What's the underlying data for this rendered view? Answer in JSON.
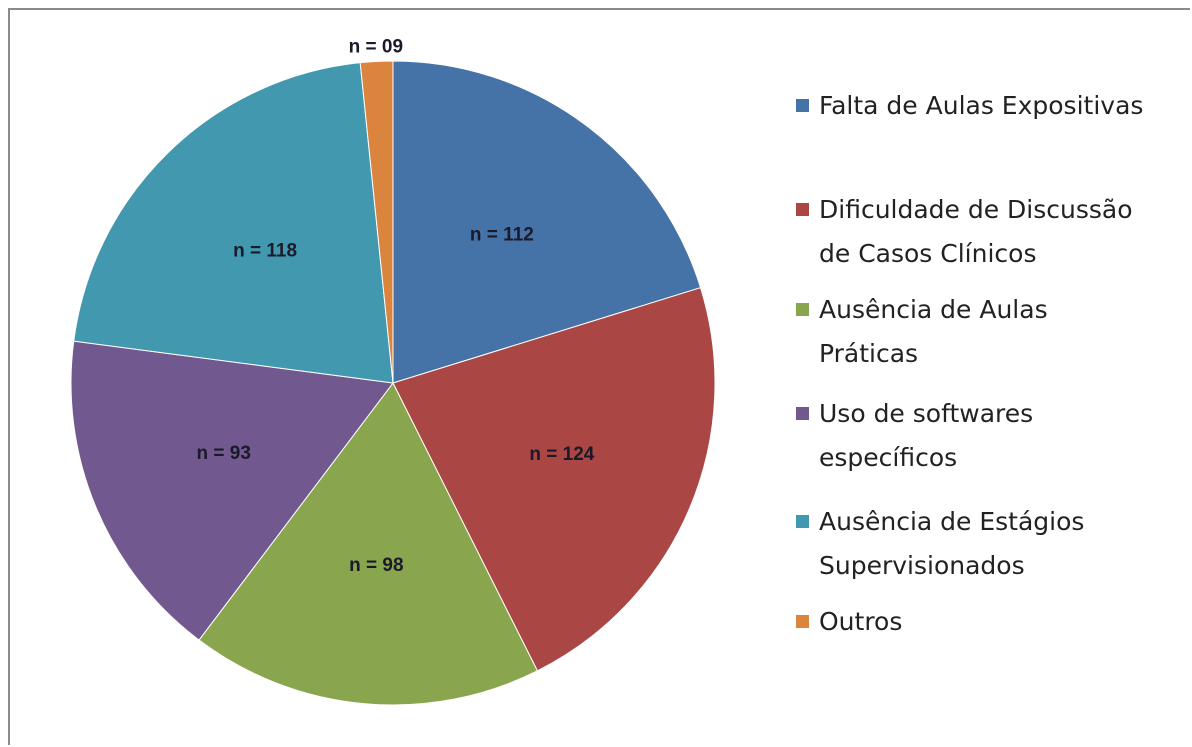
{
  "chart_data": {
    "type": "pie",
    "categories": [
      "Falta de Aulas Expositivas",
      "Dificuldade de Discussão de Casos Clínicos",
      "Ausência de Aulas Práticas",
      "Uso de softwares específicos",
      "Ausência de Estágios Supervisionados",
      "Outros"
    ],
    "values": [
      112,
      124,
      98,
      93,
      118,
      9
    ],
    "value_labels": [
      "n = 112",
      "n = 124",
      "n = 98",
      "n = 93",
      "n = 118",
      "n = 09"
    ],
    "colors": [
      "#4572a7",
      "#aa4643",
      "#89a54e",
      "#71588f",
      "#4198af",
      "#db843d"
    ],
    "legend": "right"
  }
}
